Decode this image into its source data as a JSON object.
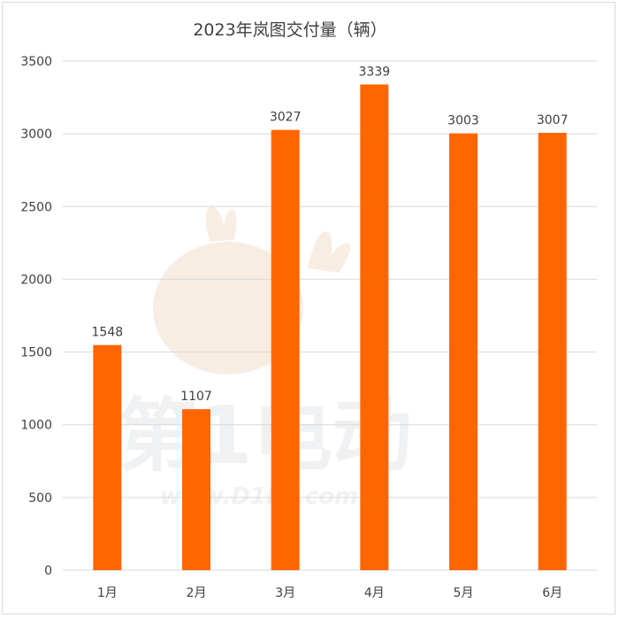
{
  "chart_data": {
    "type": "bar",
    "title": "2023年岚图交付量（辆）",
    "categories": [
      "1月",
      "2月",
      "3月",
      "4月",
      "5月",
      "6月"
    ],
    "values": [
      1548,
      1107,
      3027,
      3339,
      3003,
      3007
    ],
    "ylim": [
      0,
      3500
    ],
    "yticks": [
      0,
      500,
      1000,
      1500,
      2000,
      2500,
      3000,
      3500
    ],
    "grid": true,
    "bar_color": "#ff6600",
    "data_labels": true
  },
  "watermark": {
    "brand_text": "第1电动",
    "url_text": "www.D1EV.com"
  }
}
